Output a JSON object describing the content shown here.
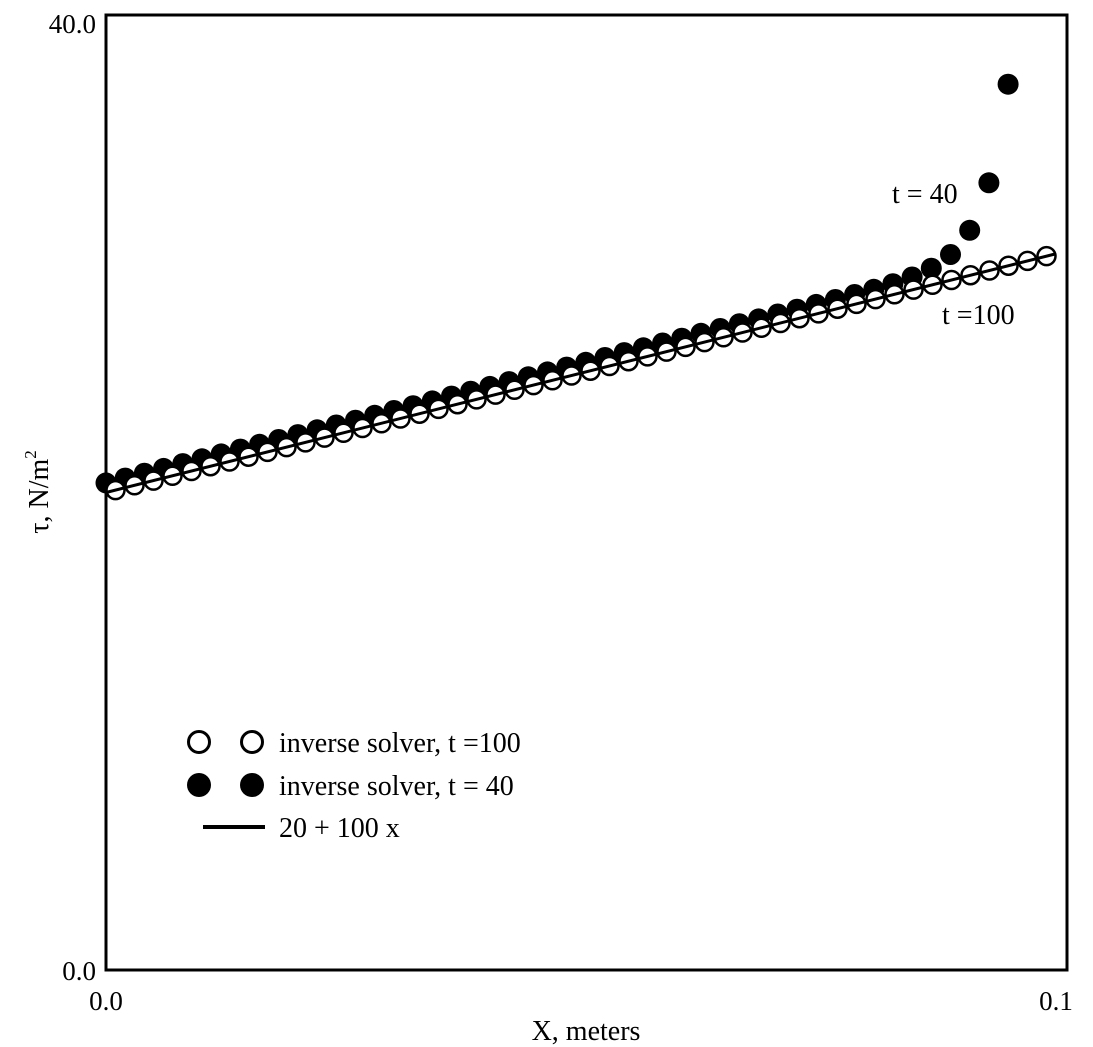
{
  "chart_data": {
    "type": "scatter",
    "xlabel": "X, meters",
    "ylabel_main": "τ, N/m",
    "ylabel_sup": "2",
    "xlim": [
      0.0,
      0.1
    ],
    "ylim": [
      0.0,
      40.0
    ],
    "x_ticks": [
      {
        "value": 0.0,
        "label": "0.0"
      },
      {
        "value": 0.1,
        "label": "0.1"
      }
    ],
    "y_ticks": [
      {
        "value": 0.0,
        "label": "0.0"
      },
      {
        "value": 40.0,
        "label": "40.0"
      }
    ],
    "grid": false,
    "legend_position": "lower-left",
    "series": [
      {
        "name": "inverse solver, t =100",
        "marker": "open-circle",
        "x_start": 0.001,
        "x_end": 0.099,
        "count": 50,
        "formula": "20 + 100 x"
      },
      {
        "name": "inverse solver, t = 40",
        "marker": "filled-circle",
        "x_start": 0.0,
        "x_end": 0.099,
        "count": 50,
        "formula": "20.4 + 100 x, rising to about 33.6 at x = 0.099"
      },
      {
        "name": "20 + 100 x",
        "marker": "line",
        "x": [
          0.0,
          0.1
        ],
        "y": [
          20.0,
          30.0
        ]
      }
    ],
    "annotations": [
      {
        "text": "t = 40",
        "x": 0.0825,
        "y": 32.6
      },
      {
        "text": "t =100",
        "x": 0.0865,
        "y": 27.6
      }
    ]
  }
}
